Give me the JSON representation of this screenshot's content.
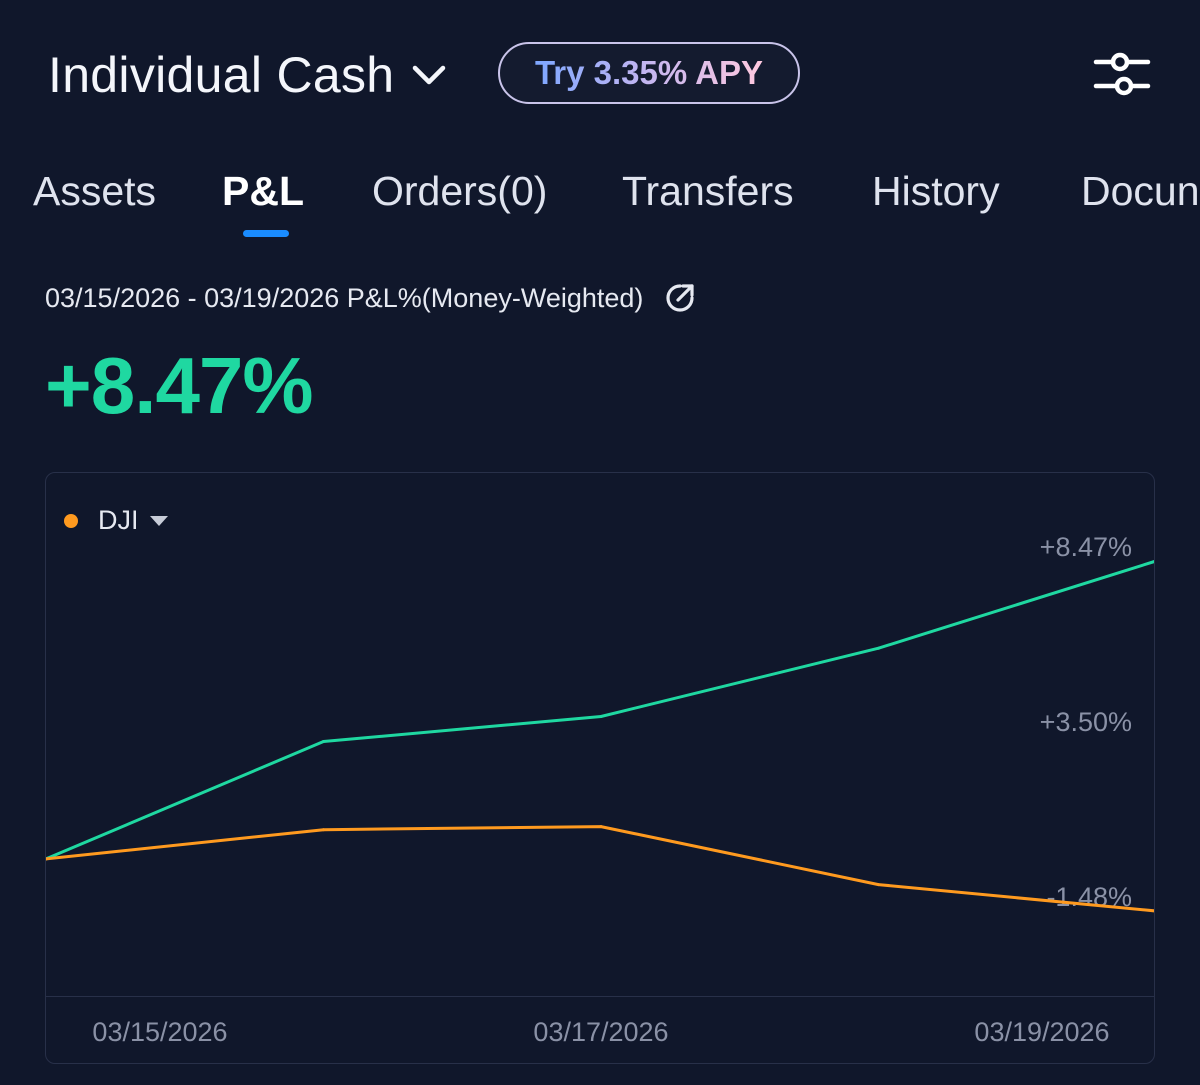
{
  "header": {
    "account_name": "Individual Cash",
    "apy_label": "Try 3.35% APY"
  },
  "tabs": [
    {
      "label": "Assets",
      "active": false
    },
    {
      "label": "P&L",
      "active": true
    },
    {
      "label": "Orders(0)",
      "active": false
    },
    {
      "label": "Transfers",
      "active": false
    },
    {
      "label": "History",
      "active": false
    },
    {
      "label": "Docun",
      "active": false
    }
  ],
  "summary": {
    "period_label": "03/15/2026 - 03/19/2026 P&L%(Money-Weighted)",
    "pnl_value": "+8.47%"
  },
  "colors": {
    "background": "#10172b",
    "positive": "#1fd8a1",
    "benchmark": "#ff9a1f",
    "tab_indicator": "#1a8cff",
    "axis_text": "#8a91a6"
  },
  "chart_data": {
    "type": "line",
    "x": [
      "03/15/2026",
      "03/16/2026",
      "03/17/2026",
      "03/18/2026",
      "03/19/2026"
    ],
    "series": [
      {
        "values": [
          0.0,
          3.34,
          4.05,
          5.99,
          8.47
        ]
      },
      {
        "name": "DJI",
        "values": [
          0.0,
          0.83,
          0.92,
          -0.73,
          -1.48
        ]
      }
    ],
    "y_tick_labels": [
      "+8.47%",
      "+3.50%",
      "-1.48%"
    ],
    "y_ticks": [
      8.47,
      3.5,
      -1.48
    ],
    "x_tick_labels": [
      "03/15/2026",
      "03/17/2026",
      "03/19/2026"
    ],
    "x_ticks": [
      0,
      2,
      4
    ],
    "legend": {
      "label": "DJI",
      "placement": "top-left"
    },
    "ylim": [
      -1.48,
      8.47
    ],
    "grid": false
  }
}
